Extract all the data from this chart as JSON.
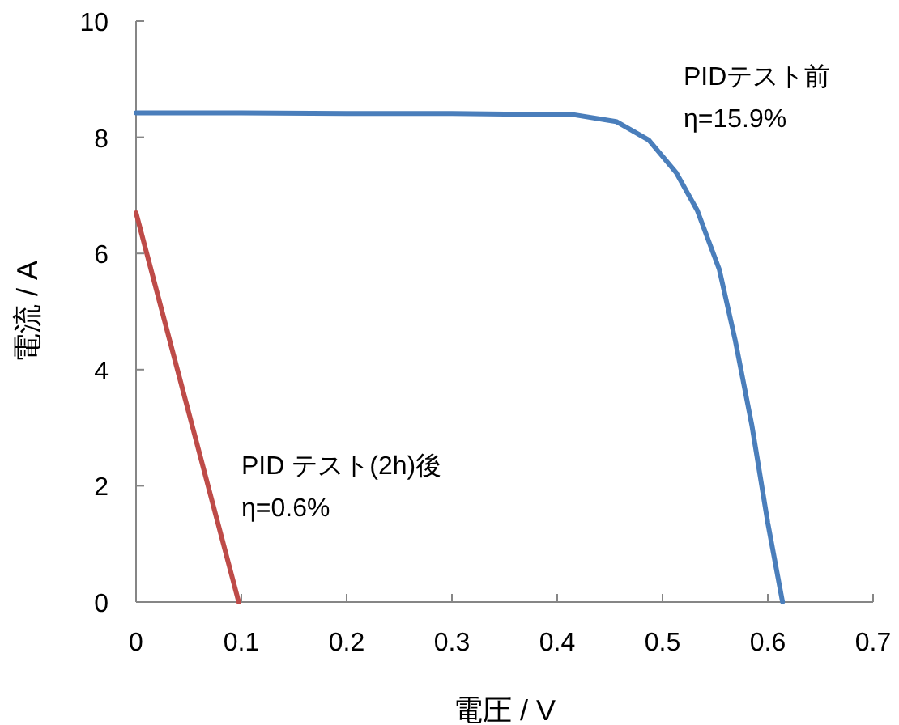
{
  "chart_data": {
    "type": "line",
    "xlabel": "電圧 / V",
    "ylabel": "電流 / A",
    "xlim": [
      0,
      0.7
    ],
    "ylim": [
      0,
      10
    ],
    "xticks": [
      0,
      0.1,
      0.2,
      0.3,
      0.4,
      0.5,
      0.6,
      0.7
    ],
    "yticks": [
      0,
      2,
      4,
      6,
      8,
      10
    ],
    "grid": false,
    "marker": "none",
    "line_style": "solid",
    "series": [
      {
        "name": "PIDテスト前",
        "color": "#4a7ebb",
        "x": [
          0,
          0.1,
          0.2,
          0.3,
          0.35,
          0.415,
          0.456,
          0.487,
          0.513,
          0.533,
          0.554,
          0.569,
          0.585,
          0.6,
          0.614
        ],
        "values": [
          8.42,
          8.42,
          8.41,
          8.41,
          8.4,
          8.39,
          8.27,
          7.95,
          7.39,
          6.74,
          5.72,
          4.51,
          3.03,
          1.36,
          0
        ]
      },
      {
        "name": "PID テスト(2h)後",
        "color": "#be4b48",
        "x": [
          0,
          0.048,
          0.0975
        ],
        "values": [
          6.7,
          3.4,
          0
        ]
      }
    ],
    "annotations": [
      "η=15.9%",
      "η=0.6%"
    ]
  }
}
